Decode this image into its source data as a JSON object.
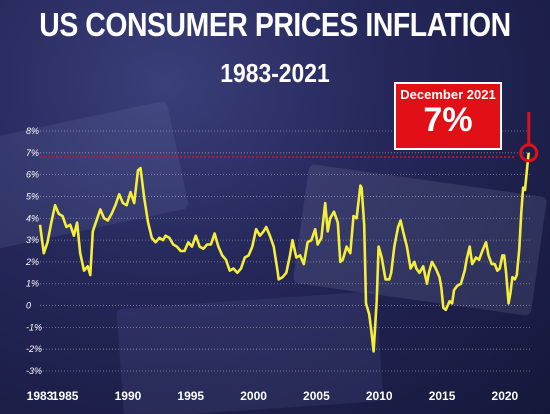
{
  "chart_data": {
    "type": "line",
    "title": "US CONSUMER PRICES INFLATION",
    "subtitle": "1983-2021",
    "xlabel": "",
    "ylabel": "",
    "xlim": [
      1983,
      2022
    ],
    "ylim": [
      -3,
      8
    ],
    "y_ticks": [
      "8%",
      "7%",
      "6%",
      "5%",
      "4%",
      "3%",
      "2%",
      "1%",
      "0",
      "-1%",
      "-2%",
      "-3%"
    ],
    "x_ticks": [
      "1983",
      "1985",
      "1990",
      "1995",
      "2000",
      "2005",
      "2010",
      "2015",
      "2020"
    ],
    "grid": "horizontal dotted",
    "reference_line": 6.8,
    "annotation": {
      "label": "December 2021",
      "value": "7%",
      "x": 2021.9,
      "y": 7.0
    },
    "colors": {
      "line": "#f5ee3a",
      "highlight": "#e10f16",
      "text": "#ffffff",
      "background": "#25285a"
    },
    "series": [
      {
        "values": [
          [
            1983.0,
            3.7
          ],
          [
            1983.3,
            2.4
          ],
          [
            1983.6,
            2.9
          ],
          [
            1983.9,
            3.8
          ],
          [
            1984.2,
            4.6
          ],
          [
            1984.5,
            4.2
          ],
          [
            1984.8,
            4.1
          ],
          [
            1985.1,
            3.6
          ],
          [
            1985.4,
            3.7
          ],
          [
            1985.7,
            3.2
          ],
          [
            1985.95,
            3.8
          ],
          [
            1986.2,
            2.4
          ],
          [
            1986.5,
            1.6
          ],
          [
            1986.8,
            1.8
          ],
          [
            1987.0,
            1.4
          ],
          [
            1987.2,
            3.4
          ],
          [
            1987.5,
            3.9
          ],
          [
            1987.8,
            4.4
          ],
          [
            1988.1,
            4.0
          ],
          [
            1988.4,
            3.9
          ],
          [
            1988.7,
            4.2
          ],
          [
            1989.0,
            4.6
          ],
          [
            1989.3,
            5.1
          ],
          [
            1989.6,
            4.7
          ],
          [
            1989.9,
            4.6
          ],
          [
            1990.2,
            5.2
          ],
          [
            1990.5,
            4.7
          ],
          [
            1990.8,
            6.2
          ],
          [
            1991.0,
            6.3
          ],
          [
            1991.3,
            4.9
          ],
          [
            1991.6,
            3.8
          ],
          [
            1991.9,
            3.1
          ],
          [
            1992.2,
            2.9
          ],
          [
            1992.5,
            3.1
          ],
          [
            1992.8,
            3.0
          ],
          [
            1993.0,
            3.2
          ],
          [
            1993.3,
            3.1
          ],
          [
            1993.6,
            2.8
          ],
          [
            1993.9,
            2.7
          ],
          [
            1994.2,
            2.5
          ],
          [
            1994.5,
            2.5
          ],
          [
            1994.8,
            2.9
          ],
          [
            1995.1,
            2.7
          ],
          [
            1995.4,
            3.2
          ],
          [
            1995.7,
            2.7
          ],
          [
            1996.0,
            2.6
          ],
          [
            1996.3,
            2.8
          ],
          [
            1996.6,
            2.8
          ],
          [
            1996.9,
            3.3
          ],
          [
            1997.2,
            2.7
          ],
          [
            1997.5,
            2.3
          ],
          [
            1997.8,
            2.1
          ],
          [
            1998.1,
            1.6
          ],
          [
            1998.4,
            1.7
          ],
          [
            1998.7,
            1.5
          ],
          [
            1999.0,
            1.7
          ],
          [
            1999.3,
            2.2
          ],
          [
            1999.6,
            2.3
          ],
          [
            1999.9,
            2.7
          ],
          [
            2000.2,
            3.5
          ],
          [
            2000.5,
            3.2
          ],
          [
            2000.8,
            3.4
          ],
          [
            2001.0,
            3.6
          ],
          [
            2001.3,
            3.2
          ],
          [
            2001.6,
            2.7
          ],
          [
            2001.9,
            1.6
          ],
          [
            2002.0,
            1.2
          ],
          [
            2002.3,
            1.3
          ],
          [
            2002.6,
            1.5
          ],
          [
            2002.9,
            2.3
          ],
          [
            2003.1,
            3.0
          ],
          [
            2003.4,
            2.2
          ],
          [
            2003.7,
            2.3
          ],
          [
            2004.0,
            1.9
          ],
          [
            2004.3,
            2.9
          ],
          [
            2004.6,
            3.0
          ],
          [
            2004.9,
            3.5
          ],
          [
            2005.1,
            2.8
          ],
          [
            2005.4,
            3.1
          ],
          [
            2005.7,
            4.7
          ],
          [
            2005.9,
            3.4
          ],
          [
            2006.1,
            4.0
          ],
          [
            2006.4,
            4.3
          ],
          [
            2006.7,
            3.8
          ],
          [
            2006.9,
            2.0
          ],
          [
            2007.1,
            2.1
          ],
          [
            2007.4,
            2.7
          ],
          [
            2007.7,
            2.4
          ],
          [
            2007.95,
            4.1
          ],
          [
            2008.2,
            4.0
          ],
          [
            2008.5,
            5.5
          ],
          [
            2008.6,
            5.4
          ],
          [
            2008.8,
            3.7
          ],
          [
            2008.95,
            0.1
          ],
          [
            2009.2,
            -0.4
          ],
          [
            2009.4,
            -1.3
          ],
          [
            2009.55,
            -2.1
          ],
          [
            2009.8,
            0.2
          ],
          [
            2009.95,
            2.7
          ],
          [
            2010.2,
            2.2
          ],
          [
            2010.5,
            1.2
          ],
          [
            2010.8,
            1.2
          ],
          [
            2010.95,
            1.5
          ],
          [
            2011.2,
            2.7
          ],
          [
            2011.5,
            3.6
          ],
          [
            2011.7,
            3.9
          ],
          [
            2011.9,
            3.4
          ],
          [
            2012.2,
            2.7
          ],
          [
            2012.5,
            1.7
          ],
          [
            2012.8,
            2.0
          ],
          [
            2012.95,
            1.7
          ],
          [
            2013.2,
            1.5
          ],
          [
            2013.5,
            1.8
          ],
          [
            2013.8,
            1.0
          ],
          [
            2013.95,
            1.5
          ],
          [
            2014.2,
            2.0
          ],
          [
            2014.5,
            1.7
          ],
          [
            2014.8,
            1.3
          ],
          [
            2014.95,
            0.8
          ],
          [
            2015.1,
            -0.1
          ],
          [
            2015.3,
            -0.2
          ],
          [
            2015.6,
            0.2
          ],
          [
            2015.8,
            0.1
          ],
          [
            2015.95,
            0.7
          ],
          [
            2016.2,
            0.9
          ],
          [
            2016.5,
            1.0
          ],
          [
            2016.8,
            1.6
          ],
          [
            2016.95,
            2.1
          ],
          [
            2017.2,
            2.7
          ],
          [
            2017.4,
            1.9
          ],
          [
            2017.7,
            2.2
          ],
          [
            2017.95,
            2.1
          ],
          [
            2018.2,
            2.5
          ],
          [
            2018.5,
            2.9
          ],
          [
            2018.7,
            2.3
          ],
          [
            2018.95,
            1.9
          ],
          [
            2019.2,
            1.9
          ],
          [
            2019.4,
            1.6
          ],
          [
            2019.6,
            1.7
          ],
          [
            2019.8,
            2.3
          ],
          [
            2019.95,
            2.3
          ],
          [
            2020.1,
            1.5
          ],
          [
            2020.3,
            0.1
          ],
          [
            2020.45,
            0.6
          ],
          [
            2020.6,
            1.3
          ],
          [
            2020.8,
            1.2
          ],
          [
            2020.95,
            1.4
          ],
          [
            2021.15,
            2.6
          ],
          [
            2021.3,
            4.2
          ],
          [
            2021.45,
            5.4
          ],
          [
            2021.6,
            5.3
          ],
          [
            2021.75,
            6.2
          ],
          [
            2021.9,
            7.0
          ]
        ]
      }
    ]
  }
}
